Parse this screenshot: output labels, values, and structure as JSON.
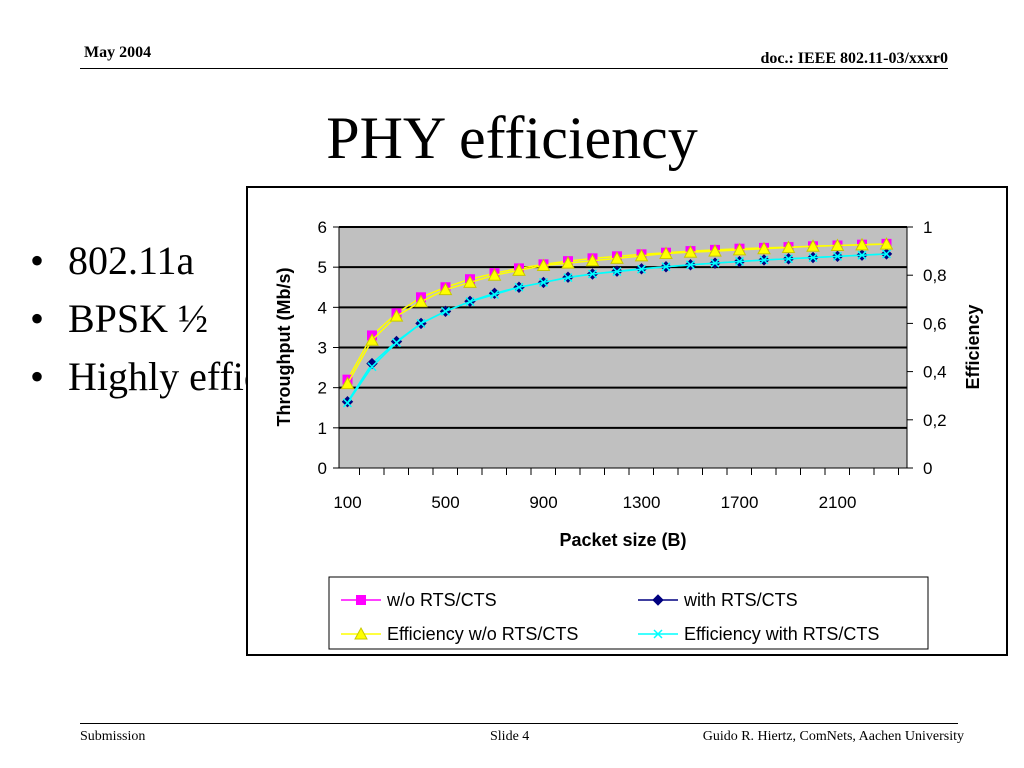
{
  "header": {
    "date": "May 2004",
    "doc": "doc.: IEEE 802.11-03/xxxr0"
  },
  "slide": {
    "title": "PHY efficiency",
    "bullets": [
      "802.11a",
      "BPSK ½",
      "Highly efficient"
    ]
  },
  "footer": {
    "left": "Submission",
    "center": "Slide 4",
    "right": "Guido R. Hiertz, ComNets, Aachen University"
  },
  "colors": {
    "plot_bg": "#c0c0c0",
    "wo_rts": "#ff00ff",
    "with_rts": "#000080",
    "eff_wo": "#ffff00",
    "eff_with": "#00ffff"
  },
  "chart_data": {
    "type": "line",
    "title": "",
    "xlabel": "Packet size (B)",
    "ylabel": "Throughput (Mb/s)",
    "y2label": "Efficiency",
    "xlim": [
      100,
      2300
    ],
    "ylim": [
      0,
      6
    ],
    "y2lim": [
      0,
      1
    ],
    "grid": "horizontal",
    "legend_position": "bottom",
    "x_tick_labels": [
      "100",
      "500",
      "900",
      "1300",
      "1700",
      "2100"
    ],
    "y_tick_labels": [
      "0",
      "1",
      "2",
      "3",
      "4",
      "5",
      "6"
    ],
    "y2_tick_labels": [
      "0",
      "0,2",
      "0,4",
      "0,6",
      "0,8",
      "1"
    ],
    "x": [
      100,
      200,
      300,
      400,
      500,
      600,
      700,
      800,
      900,
      1000,
      1100,
      1200,
      1300,
      1400,
      1500,
      1600,
      1700,
      1800,
      1900,
      2000,
      2100,
      2200,
      2300
    ],
    "series": [
      {
        "name": "w/o RTS/CTS",
        "axis": "left",
        "marker": "square",
        "values": [
          2.2,
          3.3,
          3.85,
          4.25,
          4.5,
          4.7,
          4.85,
          4.97,
          5.07,
          5.15,
          5.22,
          5.27,
          5.32,
          5.36,
          5.4,
          5.43,
          5.46,
          5.48,
          5.5,
          5.52,
          5.54,
          5.56,
          5.58
        ]
      },
      {
        "name": "with RTS/CTS",
        "axis": "left",
        "marker": "diamond",
        "values": [
          1.65,
          2.6,
          3.15,
          3.6,
          3.9,
          4.15,
          4.35,
          4.5,
          4.62,
          4.75,
          4.83,
          4.9,
          4.96,
          5.01,
          5.06,
          5.1,
          5.14,
          5.18,
          5.21,
          5.24,
          5.27,
          5.3,
          5.33
        ]
      },
      {
        "name": "Efficiency w/o RTS/CTS",
        "axis": "right",
        "marker": "triangle",
        "values": [
          0.35,
          0.53,
          0.63,
          0.69,
          0.74,
          0.77,
          0.8,
          0.82,
          0.84,
          0.85,
          0.86,
          0.87,
          0.88,
          0.89,
          0.895,
          0.9,
          0.905,
          0.91,
          0.915,
          0.92,
          0.923,
          0.926,
          0.929
        ]
      },
      {
        "name": "Efficiency with RTS/CTS",
        "axis": "right",
        "marker": "x",
        "values": [
          0.27,
          0.42,
          0.52,
          0.6,
          0.65,
          0.69,
          0.72,
          0.75,
          0.77,
          0.79,
          0.805,
          0.815,
          0.825,
          0.835,
          0.843,
          0.85,
          0.857,
          0.863,
          0.868,
          0.873,
          0.878,
          0.883,
          0.888
        ]
      }
    ]
  }
}
